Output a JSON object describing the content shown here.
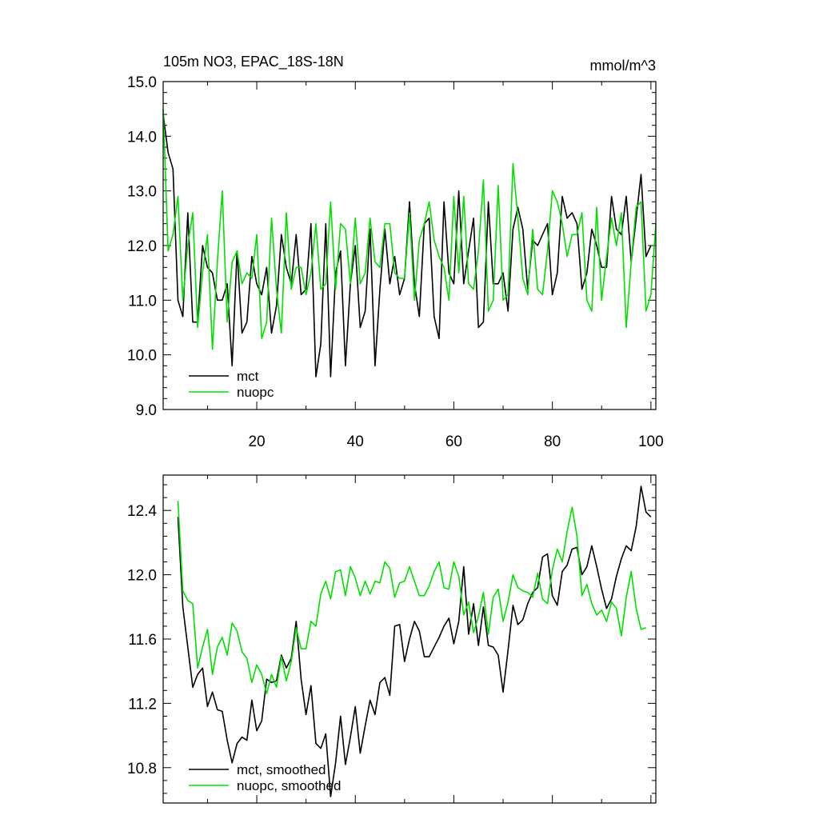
{
  "colors": {
    "mct": "#000000",
    "nuopc": "#00e000"
  },
  "chart_data": [
    {
      "type": "line",
      "title": "105m NO3, EPAC_18S-18N",
      "units": "mmol/m^3",
      "xlim": [
        1,
        101
      ],
      "ylim": [
        9.0,
        15.0
      ],
      "yticks": [
        "15.0",
        "14.0",
        "13.0",
        "12.0",
        "11.0",
        "10.0",
        "9.0"
      ],
      "xticks": [
        "20",
        "40",
        "60",
        "80",
        "100"
      ],
      "legend_position": "bottom-left",
      "series": [
        {
          "name": "mct",
          "color": "#000000",
          "values": [
            14.4,
            13.7,
            13.4,
            11.0,
            10.7,
            12.6,
            10.6,
            10.6,
            12.0,
            11.6,
            11.5,
            11.0,
            11.0,
            11.3,
            9.8,
            11.9,
            10.4,
            10.6,
            11.8,
            11.3,
            11.1,
            11.6,
            10.4,
            10.9,
            12.2,
            11.6,
            11.3,
            12.2,
            11.1,
            11.2,
            12.4,
            9.6,
            10.2,
            12.4,
            9.6,
            11.5,
            11.9,
            9.8,
            11.3,
            12.0,
            10.5,
            10.8,
            12.3,
            9.8,
            11.2,
            12.3,
            11.3,
            11.8,
            11.1,
            11.4,
            12.8,
            11.3,
            10.7,
            12.4,
            12.5,
            10.7,
            10.3,
            12.8,
            11.5,
            11.3,
            13.0,
            11.3,
            11.9,
            12.5,
            10.5,
            10.6,
            12.8,
            11.3,
            11.3,
            11.5,
            10.8,
            12.3,
            12.7,
            12.3,
            11.2,
            12.1,
            12.0,
            12.2,
            12.4,
            11.1,
            11.5,
            12.9,
            12.5,
            12.6,
            12.4,
            11.2,
            11.5,
            12.3,
            12.0,
            11.6,
            11.6,
            12.9,
            12.3,
            12.2,
            12.9,
            11.7,
            12.5,
            13.3,
            11.8,
            12.0
          ]
        },
        {
          "name": "nuopc",
          "color": "#00e000",
          "values": [
            14.5,
            11.9,
            12.2,
            12.9,
            11.0,
            12.0,
            12.6,
            10.5,
            11.5,
            12.2,
            10.1,
            11.7,
            13.0,
            10.6,
            11.7,
            11.9,
            11.3,
            11.5,
            11.4,
            12.2,
            10.3,
            10.6,
            12.5,
            11.2,
            10.4,
            12.6,
            11.2,
            11.6,
            11.6,
            11.1,
            11.5,
            12.4,
            11.2,
            11.3,
            12.8,
            11.2,
            12.4,
            12.3,
            11.3,
            12.5,
            11.3,
            11.5,
            12.5,
            11.7,
            11.6,
            12.4,
            12.4,
            11.5,
            11.4,
            11.4,
            12.6,
            11.0,
            12.1,
            12.4,
            12.8,
            12.1,
            11.8,
            11.6,
            11.0,
            12.9,
            11.5,
            12.9,
            11.3,
            11.2,
            11.9,
            13.2,
            10.8,
            11.0,
            13.1,
            11.0,
            11.1,
            13.5,
            12.5,
            11.4,
            11.1,
            12.3,
            11.2,
            11.1,
            11.9,
            13.0,
            12.8,
            12.4,
            11.8,
            12.2,
            12.2,
            12.6,
            11.0,
            10.8,
            12.7,
            11.0,
            11.8,
            12.5,
            12.0,
            12.6,
            10.5,
            11.7,
            12.7,
            12.8,
            10.8,
            11.1,
            12.4
          ]
        }
      ],
      "legend": [
        "mct",
        "nuopc"
      ]
    },
    {
      "type": "line",
      "title": "",
      "xlim": [
        1,
        101
      ],
      "ylim": [
        10.58,
        12.62
      ],
      "yticks": [
        "12.4",
        "12.0",
        "11.6",
        "11.2",
        "10.8"
      ],
      "xticks": [],
      "legend_position": "bottom-left",
      "x_start": 4,
      "series": [
        {
          "name": "mct, smoothed",
          "color": "#000000",
          "values": [
            12.36,
            11.8,
            11.55,
            11.3,
            11.38,
            11.42,
            11.18,
            11.27,
            11.16,
            11.15,
            10.97,
            10.83,
            10.95,
            10.99,
            10.97,
            11.22,
            11.03,
            11.09,
            11.35,
            11.33,
            11.34,
            11.5,
            11.42,
            11.48,
            11.71,
            11.35,
            11.13,
            11.31,
            10.95,
            10.92,
            11.01,
            10.62,
            10.83,
            11.12,
            10.82,
            10.99,
            11.18,
            10.89,
            11.06,
            11.22,
            11.13,
            11.33,
            11.36,
            11.25,
            11.68,
            11.69,
            11.46,
            11.6,
            11.71,
            11.65,
            11.49,
            11.49,
            11.55,
            11.61,
            11.68,
            11.73,
            11.57,
            11.71,
            12.05,
            11.63,
            11.82,
            11.56,
            11.8,
            11.56,
            11.55,
            11.5,
            11.27,
            11.53,
            11.81,
            11.69,
            11.72,
            11.82,
            11.89,
            11.92,
            12.11,
            12.13,
            11.87,
            11.81,
            12.02,
            12.06,
            12.16,
            12.17,
            12.0,
            12.05,
            12.18,
            12.05,
            11.91,
            11.79,
            11.85,
            11.99,
            12.1,
            12.18,
            12.15,
            12.3,
            12.55,
            12.39,
            12.36
          ]
        },
        {
          "name": "nuopc, smoothed",
          "color": "#00e000",
          "values": [
            12.46,
            11.9,
            11.84,
            11.82,
            11.42,
            11.55,
            11.66,
            11.38,
            11.55,
            11.61,
            11.5,
            11.7,
            11.65,
            11.52,
            11.48,
            11.33,
            11.44,
            11.38,
            11.26,
            11.38,
            11.3,
            11.49,
            11.34,
            11.46,
            11.67,
            11.54,
            11.54,
            11.71,
            11.68,
            11.88,
            11.96,
            11.85,
            12.02,
            12.03,
            11.87,
            12.05,
            11.98,
            11.87,
            11.96,
            11.88,
            11.96,
            11.95,
            12.08,
            12.04,
            11.86,
            11.95,
            11.96,
            12.05,
            11.96,
            11.87,
            11.87,
            11.93,
            12.02,
            12.08,
            11.92,
            11.91,
            12.08,
            11.99,
            11.75,
            11.83,
            11.64,
            11.74,
            11.89,
            11.63,
            11.86,
            11.91,
            11.71,
            11.83,
            12.0,
            11.92,
            11.9,
            11.89,
            11.86,
            12.01,
            11.85,
            11.82,
            12.03,
            12.16,
            12.08,
            12.27,
            12.42,
            12.24,
            11.87,
            11.94,
            11.82,
            11.75,
            11.78,
            11.71,
            11.83,
            11.79,
            11.62,
            11.86,
            12.02,
            11.79,
            11.66,
            11.67
          ]
        }
      ],
      "legend": [
        "mct, smoothed",
        "nuopc, smoothed"
      ]
    }
  ]
}
